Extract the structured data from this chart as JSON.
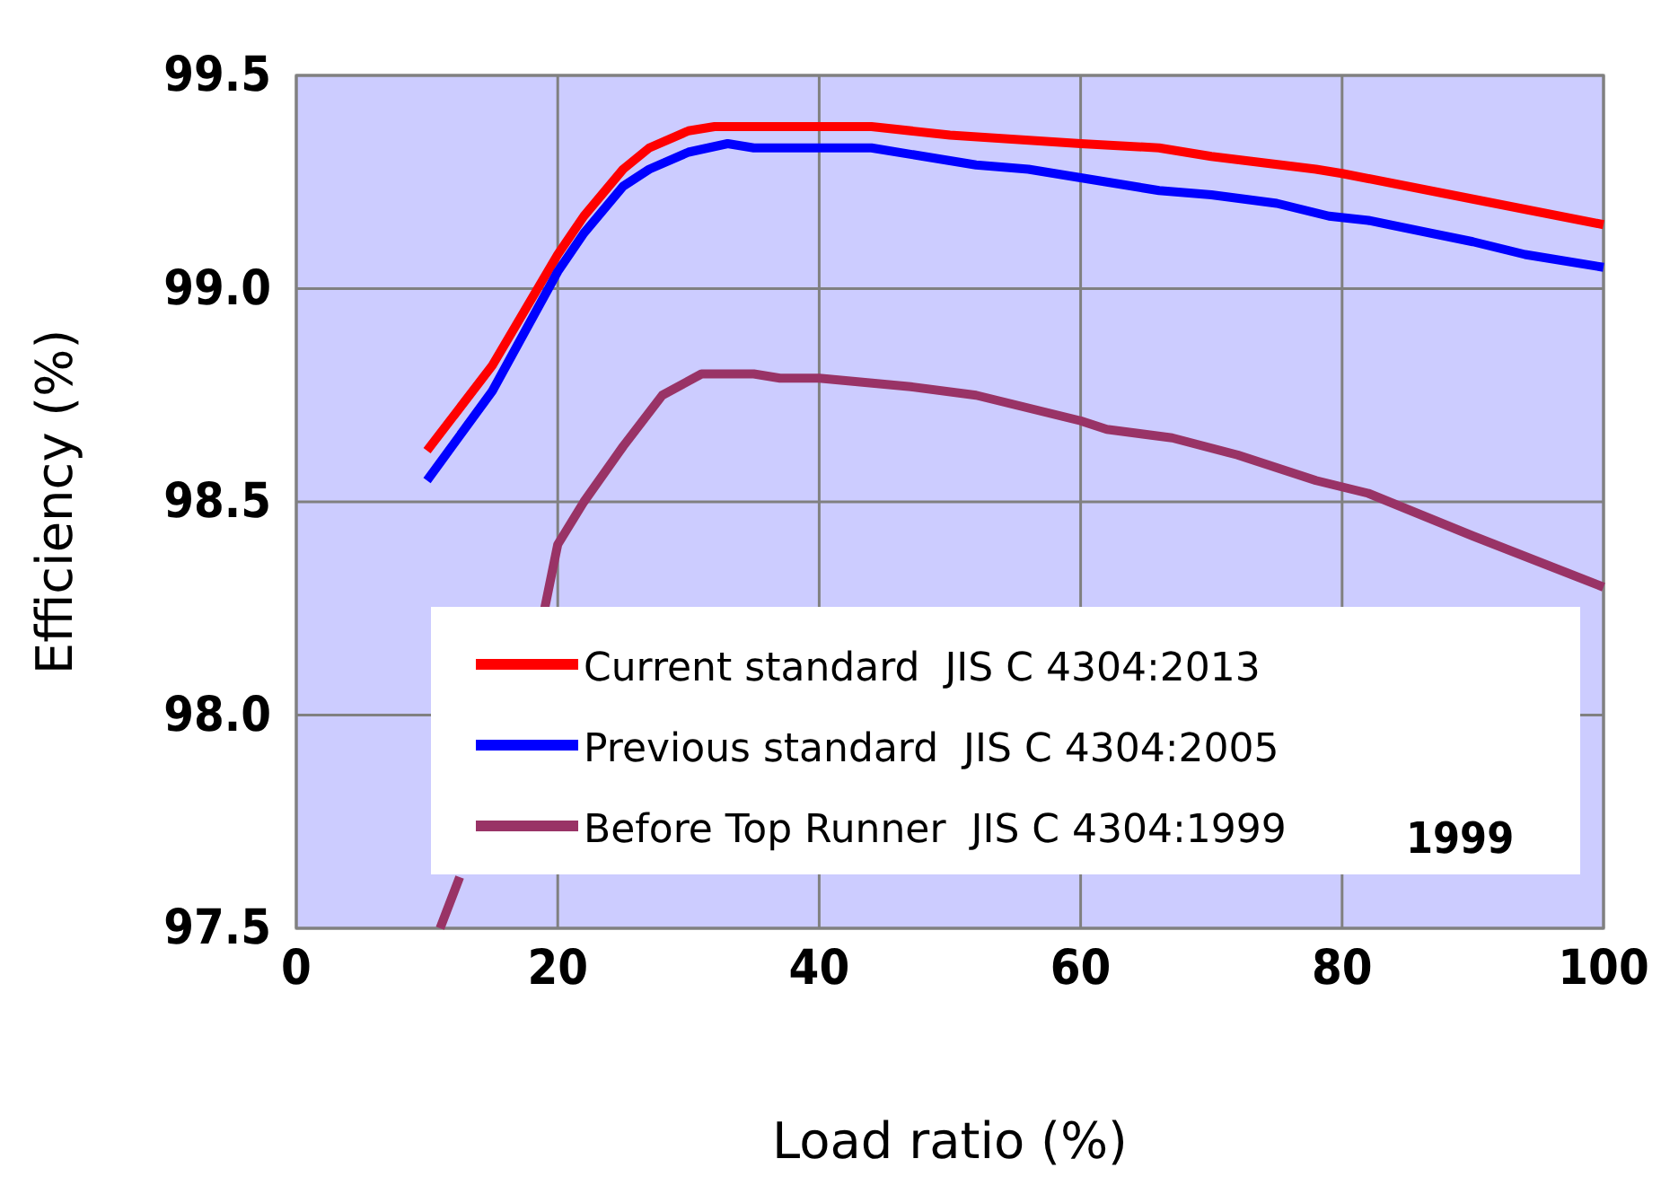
{
  "chart_data": {
    "type": "line",
    "xlabel": "Load ratio (%)",
    "ylabel": "Efficiency (%)",
    "xlim": [
      0,
      100
    ],
    "xticks": [
      0,
      20,
      40,
      60,
      80,
      100
    ],
    "ylim": [
      97.5,
      99.5
    ],
    "yticks": [
      97.5,
      {
        "value": 98,
        "label": "98.0"
      },
      98.5,
      {
        "value": 99,
        "label": "99.0"
      },
      99.5
    ],
    "grid": true,
    "legend": "bottom",
    "marker": "none",
    "line_style": "solid",
    "series": [
      {
        "name": "Current standard  JIS C 4304:2013",
        "color": "#ff0000",
        "x": [
          10,
          15,
          20,
          22,
          25,
          27,
          30,
          32,
          35,
          40,
          44,
          50,
          60,
          66,
          70,
          78,
          80,
          90,
          100
        ],
        "values": [
          98.62,
          98.82,
          99.08,
          99.17,
          99.28,
          99.33,
          99.37,
          99.38,
          99.38,
          99.38,
          99.38,
          99.36,
          99.34,
          99.33,
          99.31,
          99.28,
          99.27,
          99.21,
          99.15
        ]
      },
      {
        "name": "Previous standard  JIS C 4304:2005",
        "color": "#0000ff",
        "x": [
          10,
          15,
          20,
          22,
          25,
          27,
          30,
          33,
          35,
          40,
          44,
          50,
          52,
          56,
          60,
          66,
          70,
          75,
          79,
          82,
          90,
          94,
          100
        ],
        "values": [
          98.55,
          98.76,
          99.04,
          99.13,
          99.24,
          99.28,
          99.32,
          99.34,
          99.33,
          99.33,
          99.33,
          99.3,
          99.29,
          99.28,
          99.26,
          99.23,
          99.22,
          99.2,
          99.17,
          99.16,
          99.11,
          99.08,
          99.05
        ]
      },
      {
        "name": "Before Top Runner  JIS C 4304:1999",
        "color": "#993366",
        "x": [
          11,
          12.5,
          15,
          19,
          20,
          22,
          25,
          28,
          31,
          35,
          37,
          40,
          47,
          52,
          60,
          62,
          67,
          72,
          78,
          82,
          90,
          100
        ],
        "values": [
          97.5,
          97.62,
          null,
          98.25,
          98.4,
          98.5,
          98.63,
          98.75,
          98.8,
          98.8,
          98.79,
          98.79,
          98.77,
          98.75,
          98.69,
          98.67,
          98.65,
          98.61,
          98.55,
          98.52,
          98.42,
          98.3
        ]
      }
    ],
    "annotations": [
      "1999"
    ]
  }
}
